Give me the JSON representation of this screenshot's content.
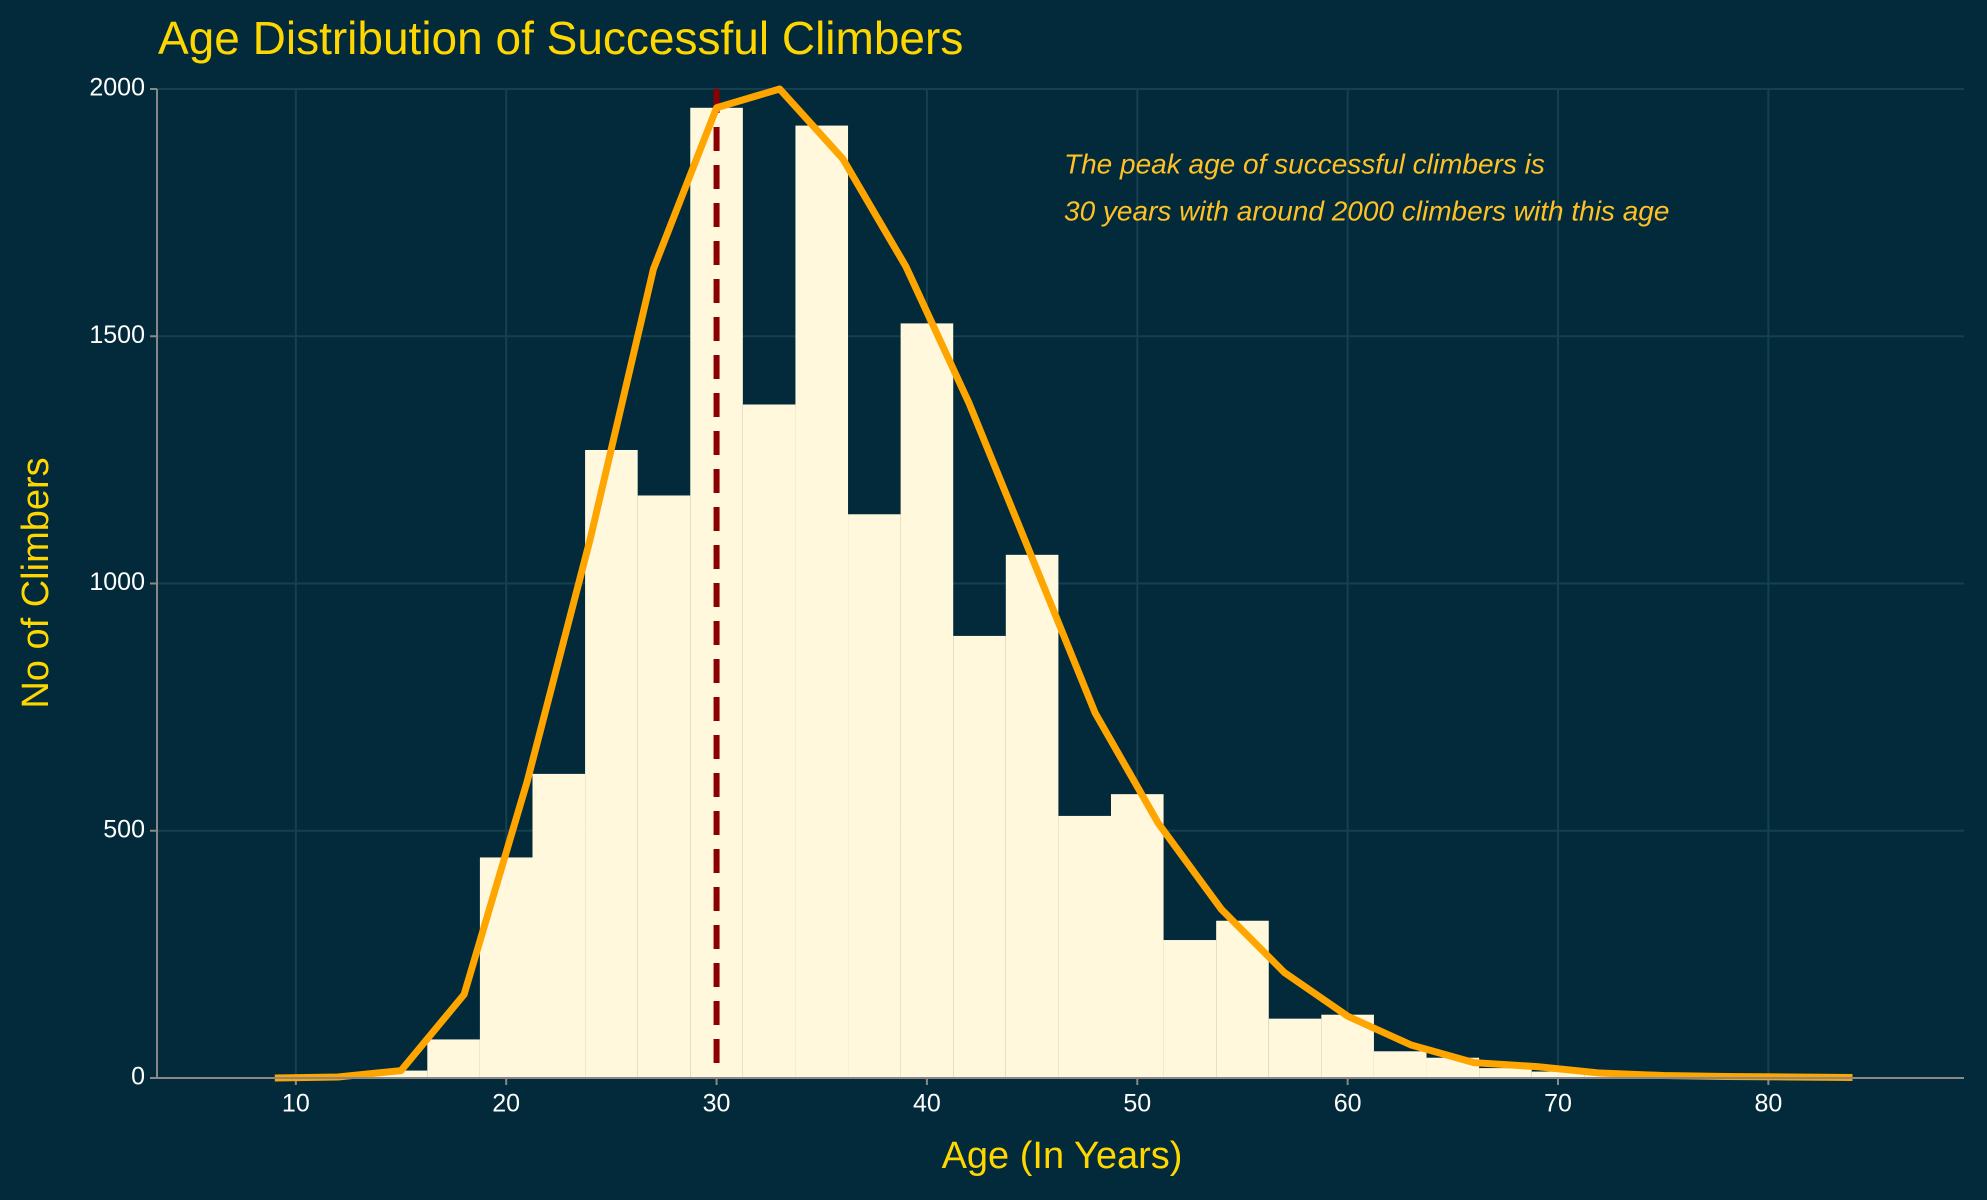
{
  "chart_data": {
    "type": "histogram",
    "title": "Age Distribution of Successful Climbers",
    "xlabel": "Age (In Years)",
    "ylabel": "No of Climbers",
    "annotation": [
      "The peak age of successful climbers is",
      "30 years with around 2000 climbers with this age"
    ],
    "bins": [
      8.75,
      11.25,
      13.75,
      16.25,
      18.75,
      21.25,
      23.75,
      26.25,
      28.75,
      31.25,
      33.75,
      36.25,
      38.75,
      41.25,
      43.75,
      46.25,
      48.75,
      51.25,
      53.75,
      56.25,
      58.75,
      61.25,
      63.75,
      66.25,
      68.75,
      71.25,
      73.75,
      76.25,
      78.75,
      81.25,
      83.75
    ],
    "values": [
      2,
      3,
      15,
      78,
      446,
      615,
      1270,
      1178,
      1962,
      1362,
      1926,
      1140,
      1526,
      894,
      1058,
      530,
      574,
      279,
      318,
      120,
      128,
      54,
      41,
      20,
      13,
      8,
      5,
      4,
      3,
      2
    ],
    "color": "#fff8dc",
    "curve": {
      "color": "#ffa500",
      "x": [
        9,
        12,
        15,
        18,
        21,
        24,
        27,
        30,
        33,
        36,
        39,
        42,
        45,
        48,
        51,
        54,
        57,
        60,
        63,
        66,
        69,
        72,
        75,
        78,
        81,
        84
      ],
      "values": [
        0,
        2,
        15,
        169,
        600,
        1091,
        1636,
        1962,
        2000,
        1859,
        1641,
        1365,
        1052,
        738,
        515,
        341,
        213,
        125,
        67,
        31,
        23,
        10,
        5,
        3,
        2,
        1
      ]
    },
    "reference_line": {
      "x": 30,
      "color": "#8b0000"
    },
    "xlim": [
      3.4,
      89.3
    ],
    "ylim": [
      0,
      2000
    ],
    "xticks": [
      10,
      20,
      30,
      40,
      50,
      60,
      70,
      80
    ],
    "yticks": [
      0,
      500,
      1000,
      1500,
      2000
    ],
    "grid": true
  }
}
